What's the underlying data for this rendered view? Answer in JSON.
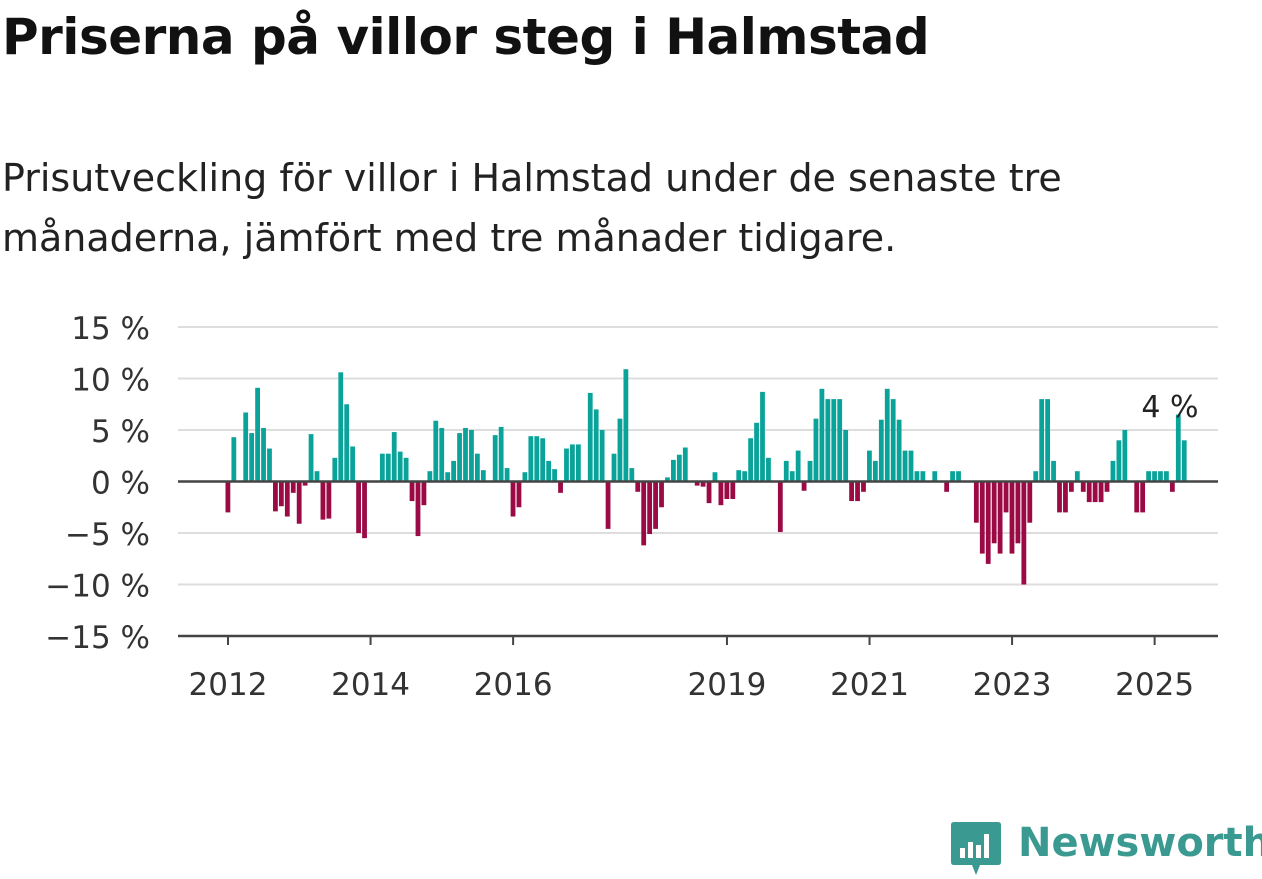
{
  "title": "Priserna på villor steg i Halmstad",
  "subtitle": "Prisutveckling för villor i Halmstad under de senaste tre månaderna, jämfört med tre månader tidigare.",
  "brand": "Newsworthy",
  "colors": {
    "positive": "#0aa39a",
    "negative": "#9b0a45",
    "grid": "#dddddd",
    "axis": "#444444",
    "brand": "#3a9a91"
  },
  "chart_data": {
    "type": "bar",
    "x_start": "2012-01",
    "x_end": "2025-03",
    "ylim": [
      -15,
      15
    ],
    "yticks": [
      15,
      10,
      5,
      0,
      -5,
      -10,
      -15
    ],
    "ytick_labels": [
      "15 %",
      "10 %",
      "5 %",
      "0 %",
      "−5 %",
      "−10 %",
      "−15 %"
    ],
    "xtick_labels": [
      "2012",
      "2014",
      "2016",
      "2019",
      "2021",
      "2023",
      "2025"
    ],
    "xtick_positions": [
      "2012-01",
      "2014-01",
      "2016-01",
      "2019-01",
      "2021-01",
      "2023-01",
      "2025-01"
    ],
    "annotation": {
      "text": "4 %",
      "month": "2025-03",
      "value": 4
    },
    "grid": true,
    "values": [
      -3,
      4.3,
      0,
      6.7,
      4.7,
      9.1,
      5.2,
      3.2,
      -2.9,
      -2.4,
      -3.4,
      -1.1,
      -4.1,
      -0.4,
      4.6,
      1,
      -3.7,
      -3.6,
      2.3,
      10.6,
      7.5,
      3.4,
      -5,
      -5.5,
      0,
      0,
      2.7,
      2.7,
      4.8,
      2.9,
      2.3,
      -1.9,
      -5.3,
      -2.3,
      1,
      5.9,
      5.2,
      0.9,
      2,
      4.7,
      5.2,
      5,
      2.7,
      1.1,
      0,
      4.5,
      5.3,
      1.3,
      -3.4,
      -2.5,
      0.9,
      4.4,
      4.4,
      4.2,
      2,
      1.2,
      -1.1,
      3.2,
      3.6,
      3.6,
      0,
      8.6,
      7,
      5,
      -4.6,
      2.7,
      6.1,
      10.9,
      1.3,
      -1,
      -6.2,
      -5.1,
      -4.6,
      -2.5,
      0.4,
      2.1,
      2.6,
      3.3,
      0,
      -0.4,
      -0.5,
      -2.1,
      0.9,
      -2.3,
      -1.7,
      -1.7,
      1.1,
      1,
      4.2,
      5.7,
      8.7,
      2.3,
      0,
      -4.9,
      2,
      1,
      3,
      -0.9,
      2,
      6.1,
      9,
      8,
      8,
      8,
      5,
      -1.9,
      -1.9,
      -1,
      3,
      2,
      6,
      9,
      8,
      6,
      3,
      3,
      1,
      1,
      0,
      1,
      0,
      -1,
      1,
      1,
      0,
      0,
      -4,
      -7,
      -8,
      -6,
      -7,
      -3,
      -7,
      -6,
      -10,
      -4,
      1,
      8,
      8,
      2,
      -3,
      -3,
      -1,
      1,
      -1,
      -2,
      -2,
      -2,
      -1,
      2,
      4,
      5,
      0,
      -3,
      -3,
      1,
      1,
      1,
      1,
      -1,
      6.5,
      4
    ]
  }
}
